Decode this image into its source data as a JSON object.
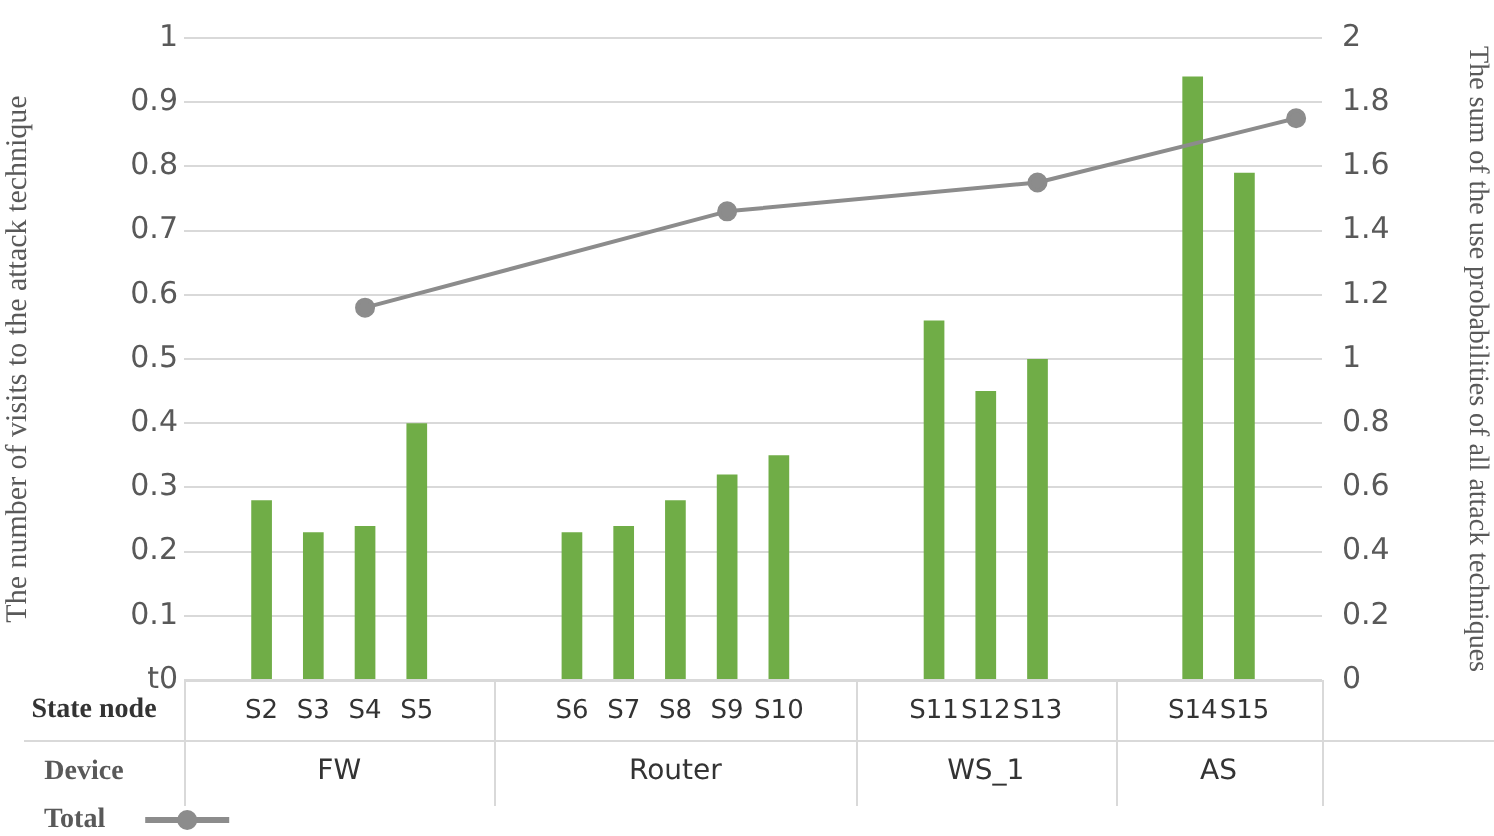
{
  "chart_data": {
    "type": "bar",
    "xlabel": "State node",
    "ylabel": "The number of visits to the attack technique",
    "y2label": "The sum of the use probabilities of all attack techniques",
    "categories": [
      null,
      "S2",
      "S3",
      "S4",
      "S5",
      null,
      null,
      "S6",
      "S7",
      "S8",
      "S9",
      "S10",
      null,
      null,
      "S11",
      "S12",
      "S13",
      null,
      null,
      "S14",
      "S15",
      null
    ],
    "series": [
      {
        "color": "#70ad47",
        "values": [
          null,
          0.28,
          0.23,
          0.24,
          0.4,
          null,
          null,
          0.23,
          0.24,
          0.28,
          0.32,
          0.35,
          null,
          null,
          0.56,
          0.45,
          0.5,
          null,
          null,
          0.94,
          0.79,
          null
        ]
      },
      {
        "name": "Total",
        "type": "line",
        "axis": "y2",
        "color": "#8c8c8c",
        "marker": "circle",
        "values": [
          null,
          null,
          null,
          1.16,
          null,
          null,
          null,
          null,
          null,
          null,
          1.46,
          null,
          null,
          null,
          null,
          null,
          1.55,
          null,
          null,
          null,
          null,
          1.75
        ]
      }
    ],
    "ylim": [
      0,
      1
    ],
    "yticks": [
      {
        "value": 0,
        "label": "t0"
      },
      0.1,
      0.2,
      0.3,
      0.4,
      0.5,
      0.6,
      0.7,
      0.8,
      0.9,
      1
    ],
    "y2lim": [
      0,
      2
    ],
    "y2ticks": [
      0,
      0.2,
      0.4,
      0.6,
      0.8,
      1,
      1.2,
      1.4,
      1.6,
      1.8,
      2
    ],
    "annotations": [
      "Device",
      "FW",
      "Router",
      "WS_1",
      "AS"
    ],
    "grid": "y",
    "legend": "bottom left"
  }
}
